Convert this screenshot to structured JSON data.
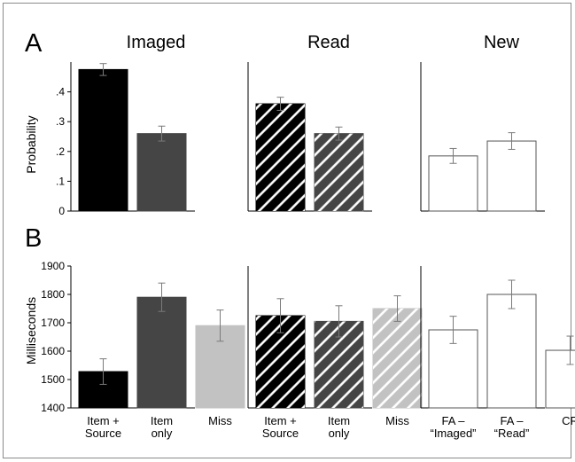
{
  "figure": {
    "panel_letters": [
      "A",
      "B"
    ],
    "column_titles": [
      "Imaged",
      "Read",
      "New"
    ]
  },
  "style": {
    "colors": {
      "imaged_item_source": "#000000",
      "imaged_item_only": "#454545",
      "imaged_miss": "#c2c2c2",
      "read_item_source": "#000000",
      "read_item_only": "#454545",
      "read_miss": "#c2c2c2",
      "new": "#ffffff",
      "hatch": "#ffffff",
      "bar_outline": "#555555",
      "error_bar": "#7a7a7a",
      "axis": "#000000"
    }
  },
  "chart_data": [
    {
      "type": "bar",
      "panel": "A",
      "ylabel": "Probability",
      "ylim": [
        0,
        0.5
      ],
      "yticks": [
        0,
        0.1,
        0.2,
        0.3,
        0.4
      ],
      "ytick_labels": [
        "0",
        ".1",
        ".2",
        ".3",
        ".4"
      ],
      "groups": [
        {
          "title": "Imaged",
          "categories": [
            "Item + Source",
            "Item only"
          ],
          "values": [
            0.475,
            0.26
          ],
          "errors": [
            0.02,
            0.025
          ],
          "fill": [
            "imaged_item_source",
            "imaged_item_only"
          ],
          "hatched": false
        },
        {
          "title": "Read",
          "categories": [
            "Item + Source",
            "Item only"
          ],
          "values": [
            0.36,
            0.26
          ],
          "errors": [
            0.022,
            0.022
          ],
          "fill": [
            "read_item_source",
            "read_item_only"
          ],
          "hatched": true
        },
        {
          "title": "New",
          "categories": [
            "FA – “Imaged”",
            "FA – “Read”"
          ],
          "values": [
            0.185,
            0.235
          ],
          "errors": [
            0.025,
            0.028
          ],
          "fill": [
            "new",
            "new"
          ],
          "hatched": false
        }
      ]
    },
    {
      "type": "bar",
      "panel": "B",
      "ylabel": "Milliseconds",
      "ylim": [
        1400,
        1900
      ],
      "yticks": [
        1400,
        1500,
        1600,
        1700,
        1800,
        1900
      ],
      "ytick_labels": [
        "1400",
        "1500",
        "1600",
        "1700",
        "1800",
        "1900"
      ],
      "groups": [
        {
          "title": "Imaged",
          "categories": [
            "Item + Source",
            "Item only",
            "Miss"
          ],
          "category_lines": [
            [
              "Item +",
              "Source"
            ],
            [
              "Item",
              "only"
            ],
            [
              "Miss"
            ]
          ],
          "values": [
            1528,
            1790,
            1690
          ],
          "errors": [
            45,
            50,
            55
          ],
          "fill": [
            "imaged_item_source",
            "imaged_item_only",
            "imaged_miss"
          ],
          "hatched": false
        },
        {
          "title": "Read",
          "categories": [
            "Item + Source",
            "Item only",
            "Miss"
          ],
          "category_lines": [
            [
              "Item +",
              "Source"
            ],
            [
              "Item",
              "only"
            ],
            [
              "Miss"
            ]
          ],
          "values": [
            1725,
            1705,
            1750
          ],
          "errors": [
            60,
            55,
            45
          ],
          "fill": [
            "read_item_source",
            "read_item_only",
            "read_miss"
          ],
          "hatched": true
        },
        {
          "title": "New",
          "categories": [
            "FA – “Imaged”",
            "FA – “Read”",
            "CR"
          ],
          "category_lines": [
            [
              "FA –",
              "“Imaged”"
            ],
            [
              "FA –",
              "“Read”"
            ],
            [
              "CR"
            ]
          ],
          "values": [
            1675,
            1800,
            1603
          ],
          "errors": [
            48,
            50,
            50
          ],
          "fill": [
            "new",
            "new",
            "new"
          ],
          "hatched": false
        }
      ]
    }
  ]
}
